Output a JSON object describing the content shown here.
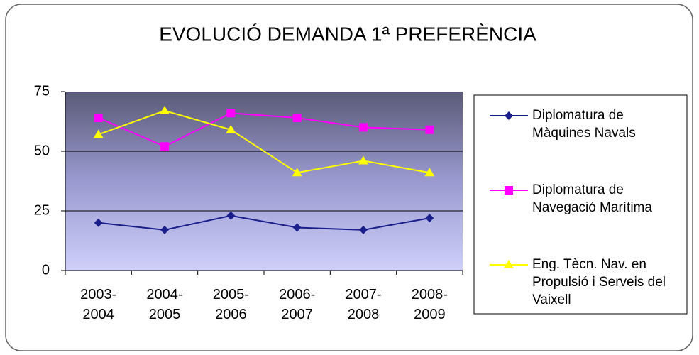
{
  "chart_data": {
    "type": "line",
    "title": "EVOLUCIÓ DEMANDA 1ª PREFERÈNCIA",
    "categories": [
      "2003-2004",
      "2004-2005",
      "2005-2006",
      "2006-2007",
      "2007-2008",
      "2008-2009"
    ],
    "series": [
      {
        "name": "Diplomatura de Màquines Navals",
        "color": "#1a1f8c",
        "marker": "diamond",
        "values": [
          20,
          17,
          23,
          18,
          17,
          22
        ]
      },
      {
        "name": "Diplomatura de Navegació Marítima",
        "color": "#ff00ff",
        "marker": "square",
        "values": [
          64,
          52,
          66,
          64,
          60,
          59
        ]
      },
      {
        "name": "Eng. Tècn. Nav. en Propulsió i Serveis del Vaixell",
        "color": "#ffff00",
        "marker": "triangle",
        "values": [
          57,
          67,
          59,
          41,
          46,
          41
        ]
      }
    ],
    "ylim": [
      0,
      75
    ],
    "yticks": [
      0,
      25,
      50,
      75
    ],
    "grid": true,
    "legend": "right"
  }
}
